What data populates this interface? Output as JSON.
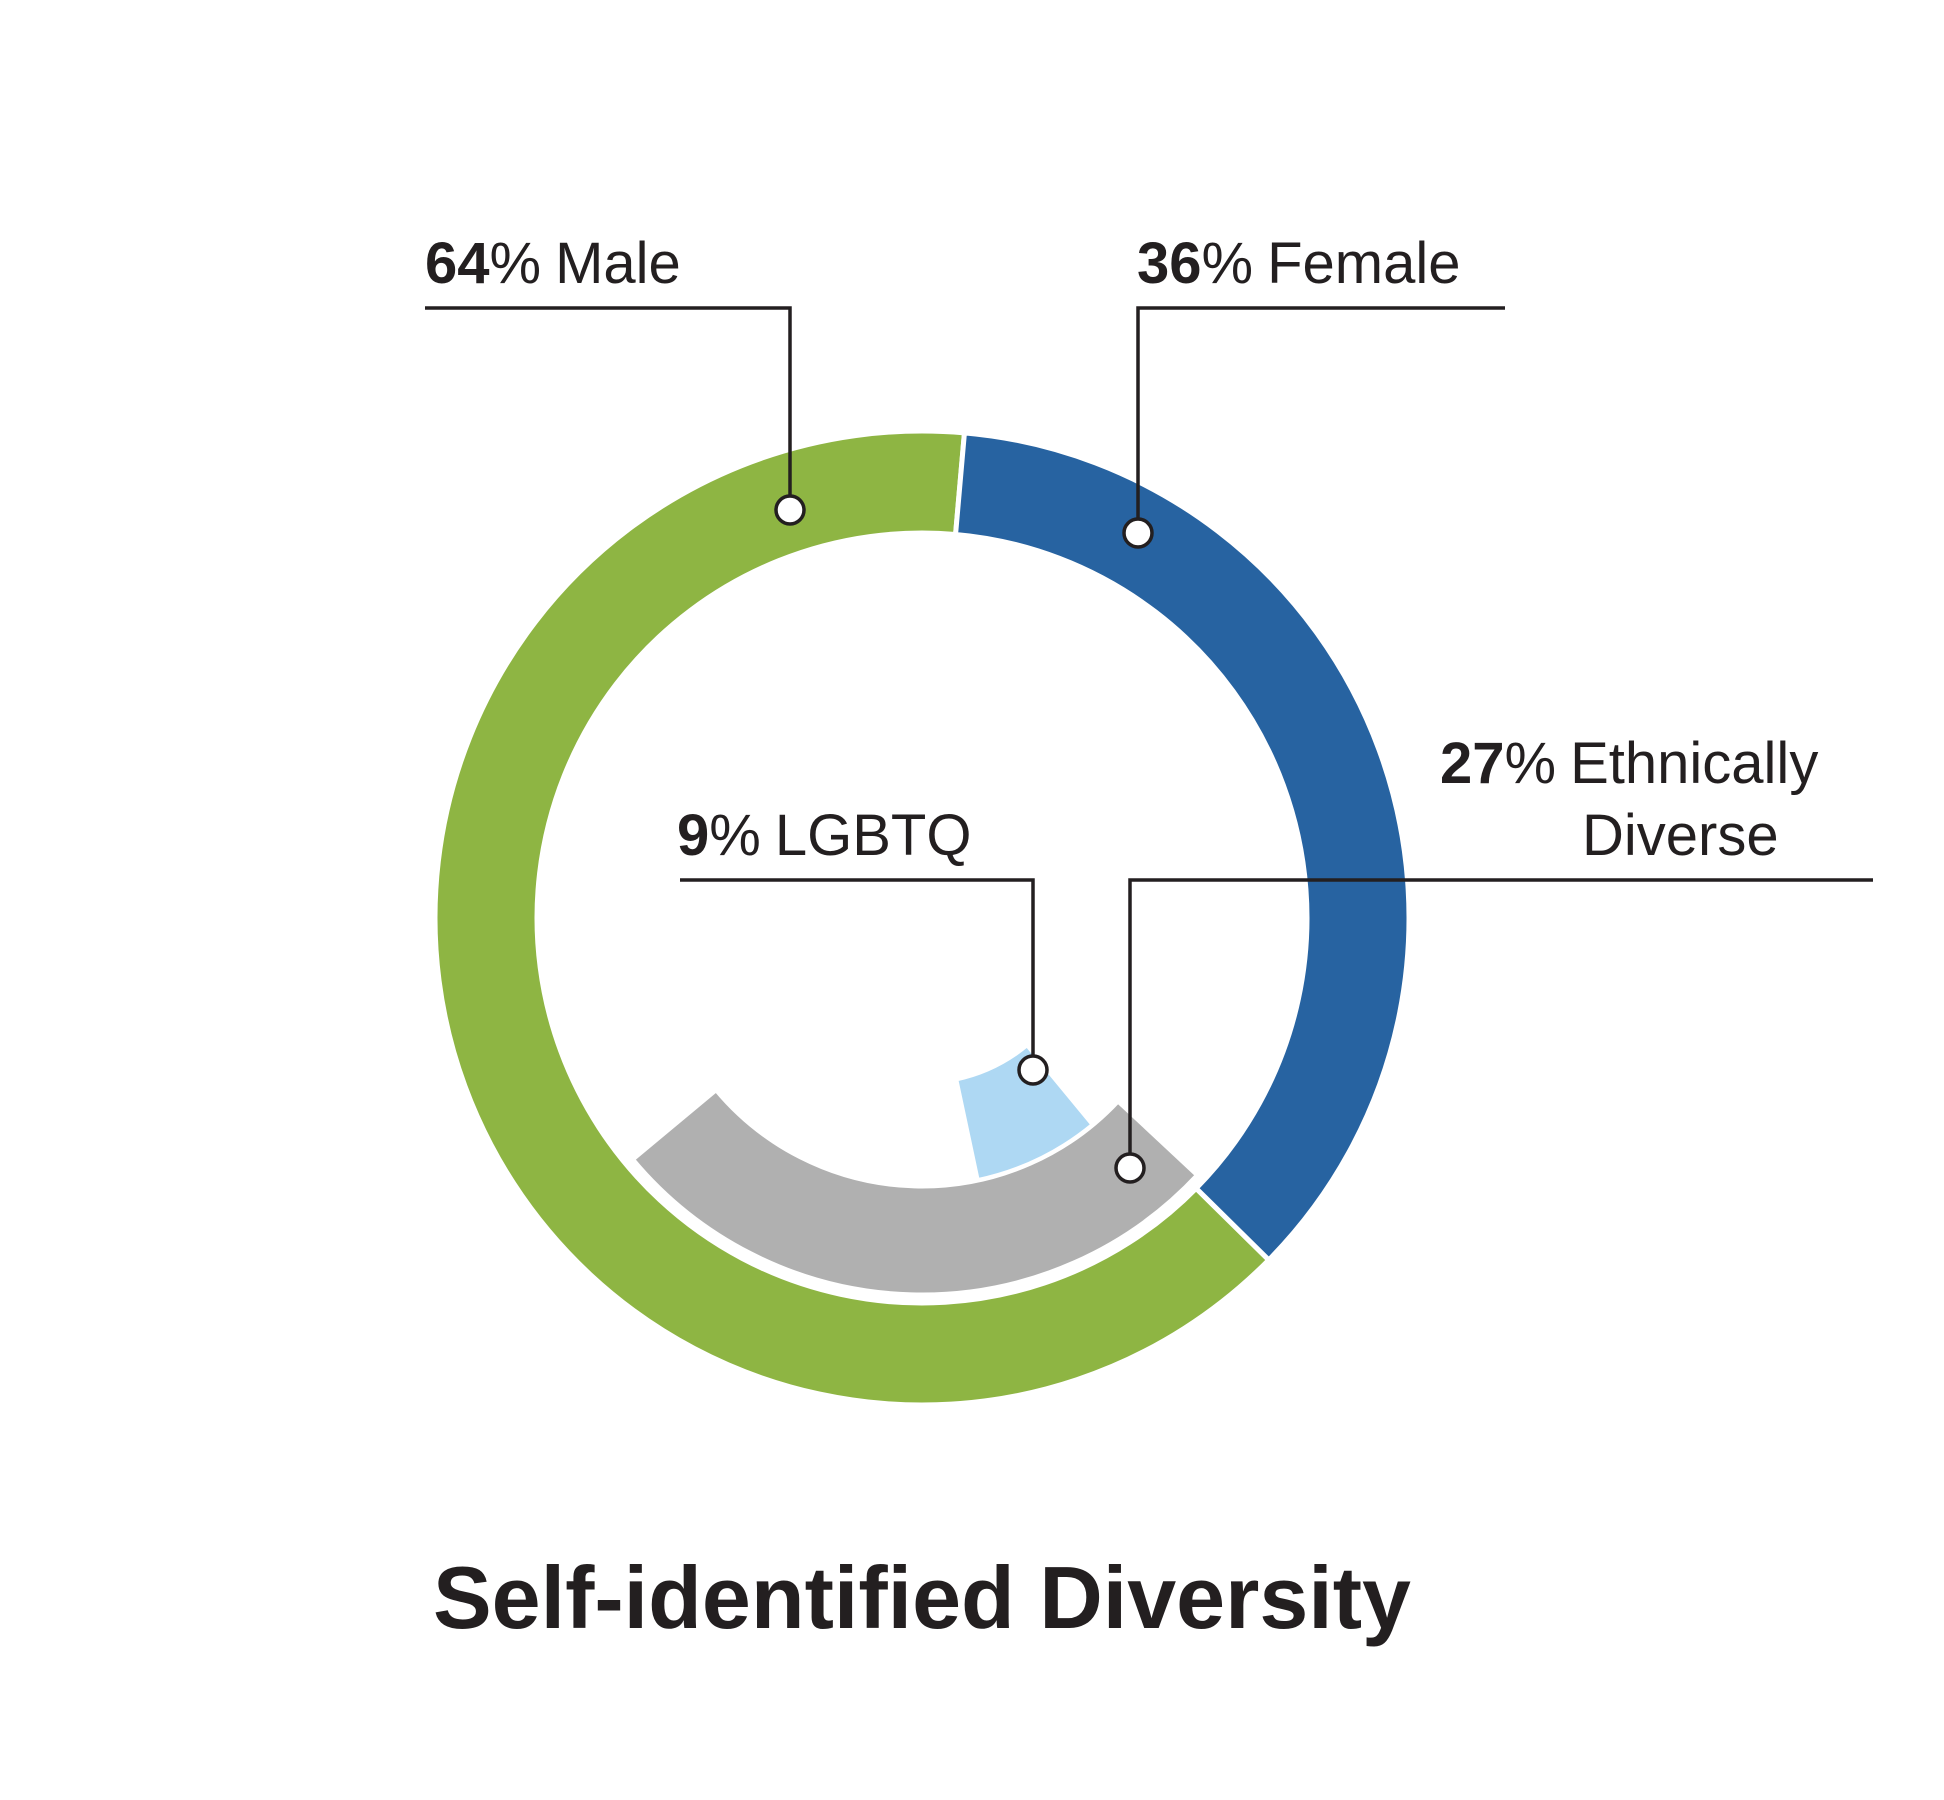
{
  "chart_data": {
    "type": "pie",
    "title": "Self-identified Diversity",
    "series": [
      {
        "name": "Gender",
        "ring": "outer",
        "slices": [
          {
            "label": "Male",
            "value": 64,
            "value_text": "64",
            "color": "#8eb543"
          },
          {
            "label": "Female",
            "value": 36,
            "value_text": "36",
            "color": "#2763a1"
          }
        ]
      },
      {
        "name": "Diversity",
        "ring": "inner",
        "slices": [
          {
            "label": "Ethnically Diverse",
            "label_lines": [
              "Ethnically",
              "Diverse"
            ],
            "value": 27,
            "value_text": "27",
            "color": "#b0b0b0"
          },
          {
            "label": "LGBTQ",
            "value": 9,
            "value_text": "9",
            "color": "#aed8f3"
          }
        ]
      }
    ],
    "percent_sign": "%"
  }
}
